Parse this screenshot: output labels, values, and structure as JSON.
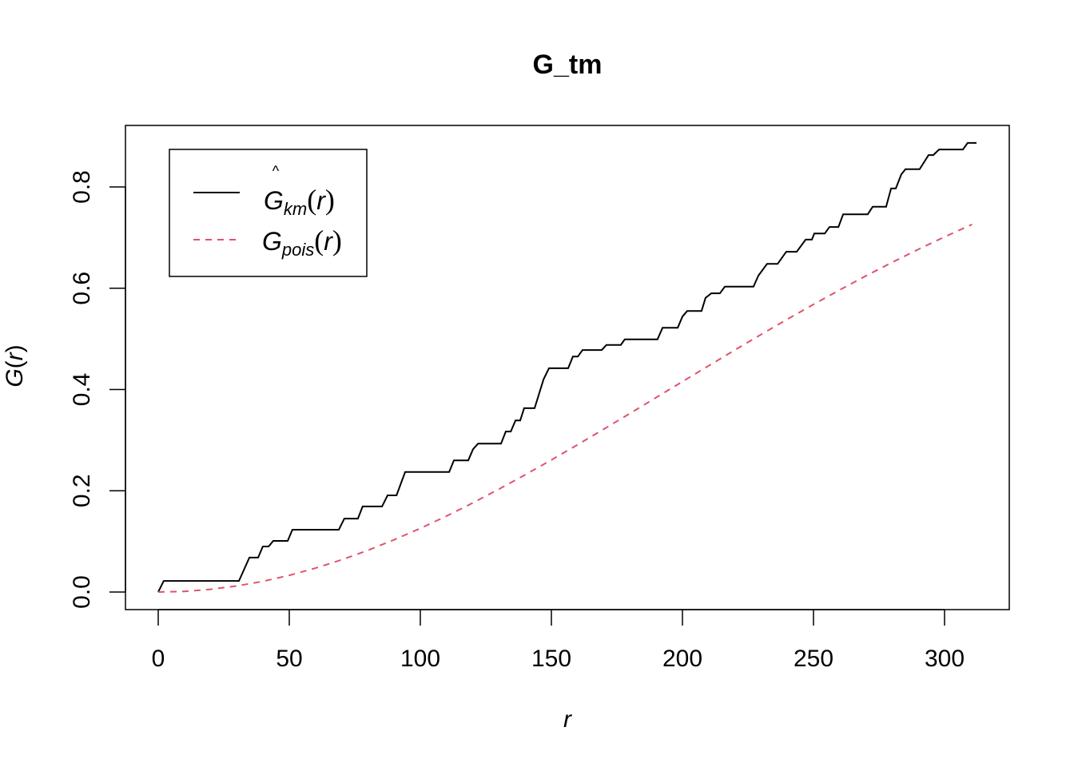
{
  "chart_data": {
    "type": "line",
    "title": "G_tm",
    "xlabel": "r",
    "ylabel": {
      "symbol": "G",
      "open": "(",
      "arg": "r",
      "close": ")"
    },
    "xlim": [
      0,
      312
    ],
    "ylim": [
      0,
      0.887
    ],
    "x_ticks": [
      0,
      50,
      100,
      150,
      200,
      250,
      300
    ],
    "x_tick_labels": [
      "0",
      "50",
      "100",
      "150",
      "200",
      "250",
      "300"
    ],
    "y_ticks": [
      0,
      0.2,
      0.4,
      0.6,
      0.8
    ],
    "y_tick_labels": [
      "0.0",
      "0.2",
      "0.4",
      "0.6",
      "0.8"
    ],
    "grid": false,
    "legend_position": "top-left",
    "series": [
      {
        "name": "G_km(r)",
        "legend": {
          "symbol": "G",
          "hat": "^",
          "sub": "km",
          "open": "(",
          "arg": "r",
          "close": ")"
        },
        "color": "#000000",
        "dash": "solid",
        "points": [
          [
            0,
            0
          ],
          [
            2.1,
            0.022
          ],
          [
            30.8,
            0.022
          ],
          [
            34.8,
            0.068
          ],
          [
            38.1,
            0.068
          ],
          [
            39.9,
            0.09
          ],
          [
            42.1,
            0.09
          ],
          [
            43.9,
            0.101
          ],
          [
            49.4,
            0.101
          ],
          [
            51.2,
            0.123
          ],
          [
            68.9,
            0.123
          ],
          [
            71.0,
            0.145
          ],
          [
            76.2,
            0.145
          ],
          [
            78.0,
            0.169
          ],
          [
            85.4,
            0.169
          ],
          [
            87.5,
            0.191
          ],
          [
            90.9,
            0.191
          ],
          [
            94.2,
            0.237
          ],
          [
            111.0,
            0.237
          ],
          [
            112.8,
            0.26
          ],
          [
            118.3,
            0.26
          ],
          [
            120.1,
            0.282
          ],
          [
            122.0,
            0.293
          ],
          [
            130.8,
            0.293
          ],
          [
            132.6,
            0.317
          ],
          [
            134.5,
            0.317
          ],
          [
            136.3,
            0.339
          ],
          [
            138.1,
            0.339
          ],
          [
            139.6,
            0.363
          ],
          [
            143.6,
            0.363
          ],
          [
            147.0,
            0.42
          ],
          [
            149.1,
            0.442
          ],
          [
            156.4,
            0.442
          ],
          [
            158.2,
            0.465
          ],
          [
            160.1,
            0.465
          ],
          [
            161.9,
            0.478
          ],
          [
            169.2,
            0.478
          ],
          [
            171.0,
            0.488
          ],
          [
            176.5,
            0.488
          ],
          [
            178.0,
            0.499
          ],
          [
            190.5,
            0.499
          ],
          [
            192.4,
            0.522
          ],
          [
            198.2,
            0.522
          ],
          [
            200.0,
            0.544
          ],
          [
            201.8,
            0.555
          ],
          [
            207.3,
            0.555
          ],
          [
            208.8,
            0.581
          ],
          [
            211.0,
            0.59
          ],
          [
            214.3,
            0.59
          ],
          [
            216.2,
            0.603
          ],
          [
            227.1,
            0.603
          ],
          [
            229.0,
            0.625
          ],
          [
            232.3,
            0.648
          ],
          [
            236.3,
            0.648
          ],
          [
            239.6,
            0.672
          ],
          [
            243.6,
            0.672
          ],
          [
            247.0,
            0.696
          ],
          [
            249.4,
            0.696
          ],
          [
            250.3,
            0.708
          ],
          [
            254.3,
            0.708
          ],
          [
            256.1,
            0.721
          ],
          [
            259.5,
            0.721
          ],
          [
            261.3,
            0.746
          ],
          [
            270.7,
            0.746
          ],
          [
            272.6,
            0.761
          ],
          [
            277.7,
            0.761
          ],
          [
            279.6,
            0.797
          ],
          [
            281.4,
            0.797
          ],
          [
            283.5,
            0.825
          ],
          [
            285.1,
            0.835
          ],
          [
            290.5,
            0.835
          ],
          [
            293.9,
            0.863
          ],
          [
            295.7,
            0.863
          ],
          [
            297.9,
            0.874
          ],
          [
            307.0,
            0.874
          ],
          [
            308.8,
            0.887
          ],
          [
            312.2,
            0.887
          ]
        ]
      },
      {
        "name": "G_pois(r)",
        "legend": {
          "symbol": "G",
          "hat": "",
          "sub": "pois",
          "open": "(",
          "arg": "r",
          "close": ")"
        },
        "color": "#DF536B",
        "dash": "dashed",
        "points": [
          [
            0,
            0
          ],
          [
            10,
            0.0013
          ],
          [
            20,
            0.0054
          ],
          [
            30,
            0.012
          ],
          [
            40,
            0.0212
          ],
          [
            50,
            0.033
          ],
          [
            60,
            0.0472
          ],
          [
            70,
            0.0637
          ],
          [
            80,
            0.0824
          ],
          [
            90,
            0.1032
          ],
          [
            100,
            0.1257
          ],
          [
            110,
            0.15
          ],
          [
            120,
            0.176
          ],
          [
            130,
            0.2032
          ],
          [
            140,
            0.2316
          ],
          [
            150,
            0.2608
          ],
          [
            160,
            0.2909
          ],
          [
            170,
            0.3217
          ],
          [
            180,
            0.3528
          ],
          [
            190,
            0.3842
          ],
          [
            200,
            0.4156
          ],
          [
            210,
            0.4469
          ],
          [
            220,
            0.478
          ],
          [
            230,
            0.5085
          ],
          [
            240,
            0.5387
          ],
          [
            250,
            0.568
          ],
          [
            260,
            0.5966
          ],
          [
            270,
            0.6243
          ],
          [
            280,
            0.6511
          ],
          [
            290,
            0.6768
          ],
          [
            300,
            0.7014
          ],
          [
            310.5,
            0.726
          ]
        ]
      }
    ]
  }
}
